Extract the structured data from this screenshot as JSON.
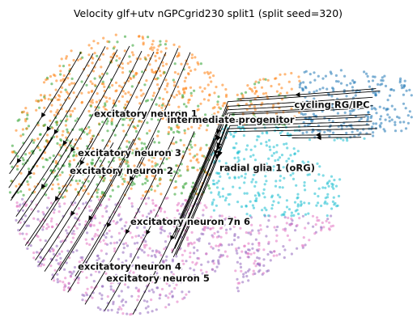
{
  "chart_data": {
    "type": "scatter",
    "title": "Velocity glf+utv nGPCgrid230 split1 (split seed=320)",
    "xlabel": "",
    "ylabel": "",
    "axes_visible": false,
    "grid": false,
    "overlay": "velocity streamlines with arrowheads",
    "colors": {
      "cycling_rg_ipc": "#1f77b4",
      "radial_glia": "#17becf",
      "excitatory_1": "#ff7f0e",
      "excitatory_2_3": "#2ca02c",
      "excitatory_4_5": "#9467bd",
      "excitatory_6_7": "#e377c2",
      "intermediate": "#8c564b",
      "stream": "#000000"
    },
    "labels": [
      {
        "text": "cycling RG/IPC",
        "x": 0.8,
        "y": 0.72
      },
      {
        "text": "excitatory neuron 1",
        "x": 0.34,
        "y": 0.69
      },
      {
        "text": "intermediate progenitor",
        "x": 0.55,
        "y": 0.67
      },
      {
        "text": "excitatory neuron 3",
        "x": 0.3,
        "y": 0.56
      },
      {
        "text": "radial glia 1 (oRG)",
        "x": 0.64,
        "y": 0.51
      },
      {
        "text": "excitatory neuron 2",
        "x": 0.28,
        "y": 0.5
      },
      {
        "text": "excitatory neuron 7n 6",
        "x": 0.45,
        "y": 0.33
      },
      {
        "text": "excitatory neuron 4",
        "x": 0.3,
        "y": 0.18
      },
      {
        "text": "excitatory neuron 5",
        "x": 0.37,
        "y": 0.14
      }
    ]
  }
}
